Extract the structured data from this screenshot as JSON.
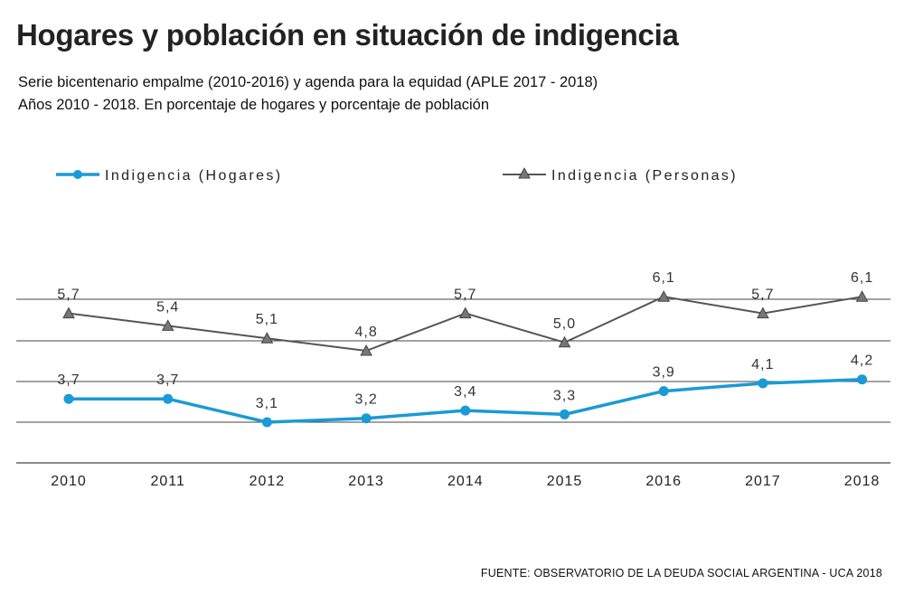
{
  "title": "Hogares y población en situación de indigencia",
  "subtitle_line1": "Serie bicentenario empalme (2010-2016) y agenda   para la equidad (APLE 2017 - 2018)",
  "subtitle_line2": "Años 2010 - 2018. En porcentaje de hogares y porcentaje de población",
  "source": "FUENTE: OBSERVATORIO DE LA DEUDA SOCIAL ARGENTINA - UCA 2018",
  "colors": {
    "hogares": "#1a9ad6",
    "personas": "#555555",
    "grid": "#444444",
    "marker_personas": "#777777"
  },
  "chart_data": {
    "type": "line",
    "categories": [
      "2010",
      "2011",
      "2012",
      "2013",
      "2014",
      "2015",
      "2016",
      "2017",
      "2018"
    ],
    "series": [
      {
        "name": "Indigencia (Hogares)",
        "values": [
          3.7,
          3.7,
          3.1,
          3.2,
          3.4,
          3.3,
          3.9,
          4.1,
          4.2
        ],
        "labels": [
          "3,7",
          "3,7",
          "3,1",
          "3,2",
          "3,4",
          "3,3",
          "3,9",
          "4,1",
          "4,2"
        ],
        "marker": "circle"
      },
      {
        "name": "Indigencia (Personas)",
        "values": [
          5.7,
          5.4,
          5.1,
          4.8,
          5.7,
          5.0,
          6.1,
          5.7,
          6.1
        ],
        "labels": [
          "5,7",
          "5,4",
          "5,1",
          "4,8",
          "5,7",
          "5,0",
          "6,1",
          "5,7",
          "6,1"
        ],
        "marker": "triangle"
      }
    ],
    "legend_position": "top",
    "grid": true
  }
}
